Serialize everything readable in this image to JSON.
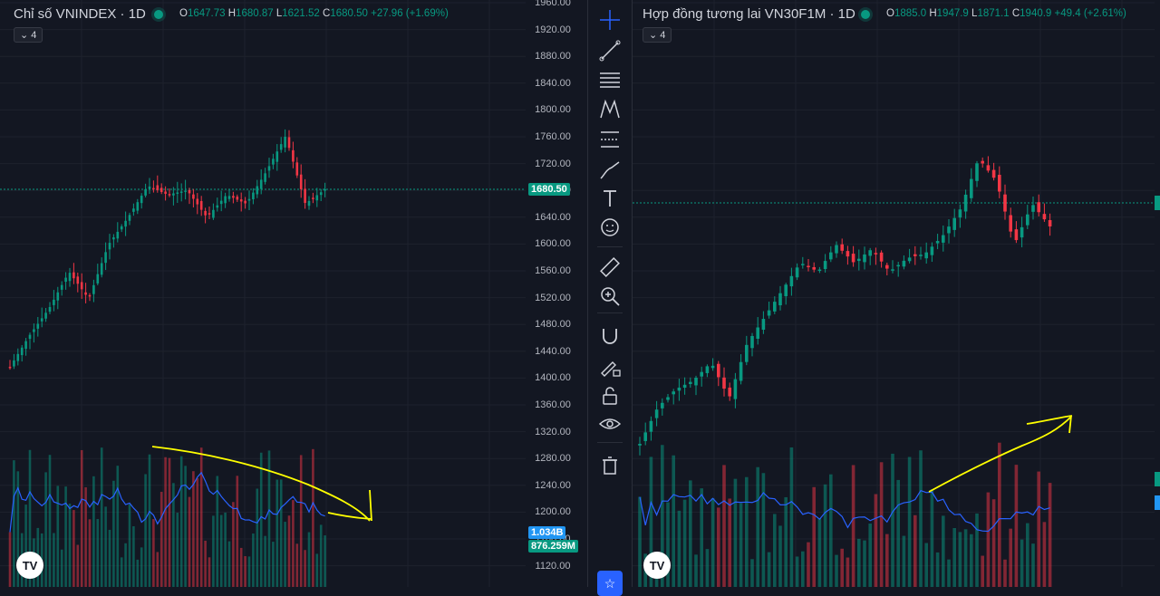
{
  "left_chart": {
    "title": "Chỉ số VNINDEX · 1D",
    "ohlc": {
      "o_label": "O",
      "o": "1647.73",
      "h_label": "H",
      "h": "1680.87",
      "l_label": "L",
      "l": "1621.52",
      "c_label": "C",
      "c": "1680.50",
      "change": "+27.96 (+1.69%)"
    },
    "indicator_count": "4",
    "price_axis": [
      "1960.00",
      "1920.00",
      "1880.00",
      "1840.00",
      "1800.00",
      "1760.00",
      "1720.00",
      "1680.00",
      "1640.00",
      "1600.00",
      "1560.00",
      "1520.00",
      "1480.00",
      "1440.00",
      "1400.00",
      "1360.00",
      "1320.00",
      "1280.00",
      "1240.00",
      "1200.00",
      "1160.00",
      "1120.00"
    ],
    "last_price": "1680.50",
    "vol_label_1": "1.034B",
    "vol_label_2": "876.259M"
  },
  "right_chart": {
    "title": "Hợp đồng tương lai VN30F1M · 1D",
    "ohlc": {
      "o_label": "O",
      "o": "1885.0",
      "h_label": "H",
      "h": "1947.9",
      "l_label": "L",
      "l": "1871.1",
      "c_label": "C",
      "c": "1940.9",
      "change": "+49.4 (+2.61%)"
    },
    "indicator_count": "4"
  },
  "toolbar": {
    "tools": [
      "crosshair-icon",
      "trend-line-icon",
      "horizontal-lines-icon",
      "pattern-icon",
      "fib-icon",
      "brush-icon",
      "text-icon",
      "emoji-icon",
      "ruler-icon",
      "zoom-in-icon",
      "magnet-icon",
      "lock-draw-icon",
      "unlock-icon",
      "eye-icon",
      "trash-icon"
    ]
  },
  "colors": {
    "up": "#089981",
    "down": "#f23645",
    "bg": "#131722",
    "grid": "#1e222d",
    "ma": "#2962ff",
    "annotation": "#ffff00"
  },
  "logo_text": "TV"
}
